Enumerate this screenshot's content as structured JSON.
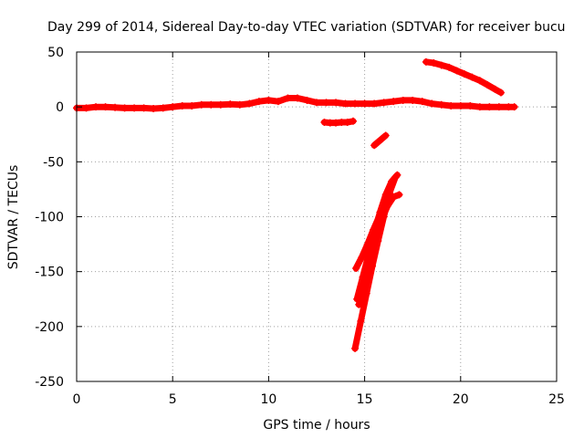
{
  "chart_data": {
    "type": "scatter",
    "title": "Day 299 of 2014, Sidereal Day-to-day VTEC variation (SDTVAR) for receiver bucu",
    "xlabel": "GPS time / hours",
    "ylabel": "SDTVAR / TECUs",
    "xlim": [
      0,
      25
    ],
    "ylim": [
      -250,
      50
    ],
    "xticks": [
      0,
      5,
      10,
      15,
      20,
      25
    ],
    "yticks": [
      50,
      0,
      -50,
      -100,
      -150,
      -200,
      -250
    ],
    "grid": true,
    "marker": "plus",
    "color": "#ff0000",
    "series": [
      {
        "name": "main-track",
        "points": [
          [
            0,
            -1
          ],
          [
            0.5,
            -1
          ],
          [
            1,
            0
          ],
          [
            1.5,
            0
          ],
          [
            2,
            -0.5
          ],
          [
            2.5,
            -1
          ],
          [
            3,
            -1
          ],
          [
            3.5,
            -1
          ],
          [
            4,
            -1.5
          ],
          [
            4.5,
            -1
          ],
          [
            5,
            0
          ],
          [
            5.5,
            1
          ],
          [
            6,
            1
          ],
          [
            6.5,
            2
          ],
          [
            7,
            2
          ],
          [
            7.5,
            2
          ],
          [
            8,
            2.5
          ],
          [
            8.5,
            2
          ],
          [
            9,
            3
          ],
          [
            9.5,
            5
          ],
          [
            10,
            6
          ],
          [
            10.5,
            5
          ],
          [
            11,
            8
          ],
          [
            11.5,
            8
          ],
          [
            12,
            6
          ],
          [
            12.5,
            4
          ],
          [
            13,
            4
          ],
          [
            13.5,
            4
          ],
          [
            14,
            3
          ],
          [
            14.5,
            3
          ],
          [
            15,
            3
          ],
          [
            15.5,
            3
          ],
          [
            16,
            4
          ],
          [
            16.5,
            5
          ],
          [
            17,
            6
          ],
          [
            17.5,
            6
          ],
          [
            18,
            5
          ],
          [
            18.5,
            3
          ],
          [
            19,
            2
          ],
          [
            19.5,
            1
          ],
          [
            20,
            1
          ],
          [
            20.5,
            1
          ],
          [
            21,
            0
          ],
          [
            21.5,
            0
          ],
          [
            22,
            0
          ],
          [
            22.5,
            0
          ],
          [
            22.8,
            0
          ]
        ]
      },
      {
        "name": "upper-arc",
        "points": [
          [
            18.2,
            41
          ],
          [
            18.6,
            40
          ],
          [
            19,
            38
          ],
          [
            19.4,
            36
          ],
          [
            19.8,
            33
          ],
          [
            20.2,
            30
          ],
          [
            20.6,
            27
          ],
          [
            21,
            24
          ],
          [
            21.4,
            20
          ],
          [
            21.8,
            16
          ],
          [
            22.1,
            13
          ]
        ]
      },
      {
        "name": "offset-segment",
        "points": [
          [
            12.9,
            -14
          ],
          [
            13.2,
            -14.5
          ],
          [
            13.5,
            -14.5
          ],
          [
            13.8,
            -14
          ],
          [
            14.1,
            -14
          ],
          [
            14.4,
            -13
          ]
        ]
      },
      {
        "name": "short-dip",
        "points": [
          [
            15.5,
            -35
          ],
          [
            15.7,
            -32
          ],
          [
            15.9,
            -29
          ],
          [
            16.1,
            -26
          ]
        ]
      },
      {
        "name": "steep-1",
        "points": [
          [
            14.5,
            -220
          ],
          [
            14.8,
            -195
          ],
          [
            15.1,
            -170
          ],
          [
            15.4,
            -145
          ],
          [
            15.7,
            -122
          ],
          [
            16,
            -100
          ],
          [
            16.3,
            -78
          ],
          [
            16.6,
            -64
          ]
        ]
      },
      {
        "name": "steep-2",
        "points": [
          [
            14.6,
            -175
          ],
          [
            14.9,
            -155
          ],
          [
            15.2,
            -135
          ],
          [
            15.5,
            -115
          ],
          [
            15.8,
            -96
          ],
          [
            16.1,
            -80
          ],
          [
            16.4,
            -68
          ],
          [
            16.7,
            -62
          ]
        ]
      },
      {
        "name": "steep-3",
        "points": [
          [
            14.55,
            -147
          ],
          [
            14.85,
            -137
          ],
          [
            15.15,
            -125
          ],
          [
            15.45,
            -112
          ],
          [
            15.75,
            -100
          ],
          [
            16.05,
            -88
          ],
          [
            16.3,
            -79
          ]
        ]
      },
      {
        "name": "steep-4",
        "points": [
          [
            14.7,
            -180
          ],
          [
            15,
            -160
          ],
          [
            15.3,
            -140
          ],
          [
            15.6,
            -121
          ],
          [
            15.9,
            -102
          ],
          [
            16.2,
            -90
          ],
          [
            16.5,
            -82
          ],
          [
            16.8,
            -80
          ]
        ]
      }
    ]
  }
}
